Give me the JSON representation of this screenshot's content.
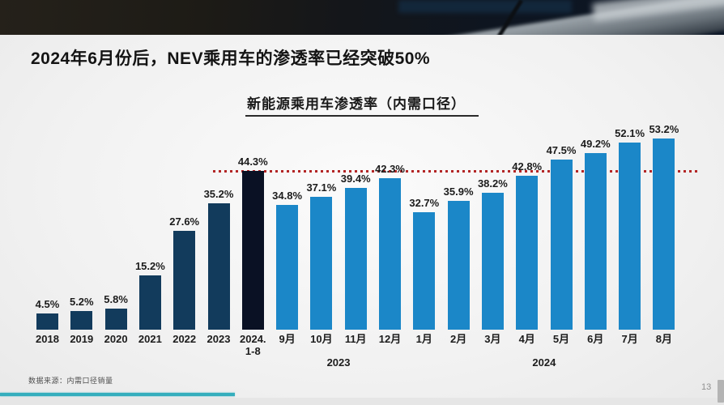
{
  "slide": {
    "title": "2024年6月份后，NEV乘用车的渗透率已经突破50%",
    "source_note": "数据来源：内需口径销量",
    "page_number": "13"
  },
  "chart_data": {
    "type": "bar",
    "title": "新能源乘用车渗透率（内需口径）",
    "unit": "%",
    "ylim": [
      0,
      56
    ],
    "grid": false,
    "legend": "none",
    "categories": [
      "2018",
      "2019",
      "2020",
      "2021",
      "2022",
      "2023",
      "2024.1-8",
      "2023-9月",
      "2023-10月",
      "2023-11月",
      "2023-12月",
      "2024-1月",
      "2024-2月",
      "2024-3月",
      "2024-4月",
      "2024-5月",
      "2024-6月",
      "2024-7月",
      "2024-8月"
    ],
    "axis_labels": [
      "2018",
      "2019",
      "2020",
      "2021",
      "2022",
      "2023",
      "2024.\n1-8",
      "9月",
      "10月",
      "11月",
      "12月",
      "1月",
      "2月",
      "3月",
      "4月",
      "5月",
      "6月",
      "7月",
      "8月"
    ],
    "values": [
      4.5,
      5.2,
      5.8,
      15.2,
      27.6,
      35.2,
      44.3,
      34.8,
      37.1,
      39.4,
      42.3,
      32.7,
      35.9,
      38.2,
      42.8,
      47.5,
      49.2,
      52.1,
      53.2
    ],
    "value_labels": [
      "4.5%",
      "5.2%",
      "5.8%",
      "15.2%",
      "27.6%",
      "35.2%",
      "44.3%",
      "34.8%",
      "37.1%",
      "39.4%",
      "42.3%",
      "32.7%",
      "35.9%",
      "38.2%",
      "42.8%",
      "47.5%",
      "49.2%",
      "52.1%",
      "53.2%"
    ],
    "bar_styles": [
      "year",
      "year",
      "year",
      "year",
      "year",
      "year",
      "ytd",
      "month",
      "month",
      "month",
      "month",
      "month",
      "month",
      "month",
      "month",
      "month",
      "month",
      "month",
      "month"
    ],
    "group_axis_labels": [
      {
        "label": "2023",
        "start_index": 7,
        "end_index": 10
      },
      {
        "label": "2024",
        "start_index": 11,
        "end_index": 18
      }
    ],
    "reference_line": {
      "value": 44.3,
      "style": "dotted",
      "color": "#b32626"
    },
    "colors": {
      "year": "#123b5c",
      "ytd": "#0a1124",
      "month": "#1b87c8"
    }
  },
  "footer": {
    "progress_bar_color": "#35aebd"
  }
}
